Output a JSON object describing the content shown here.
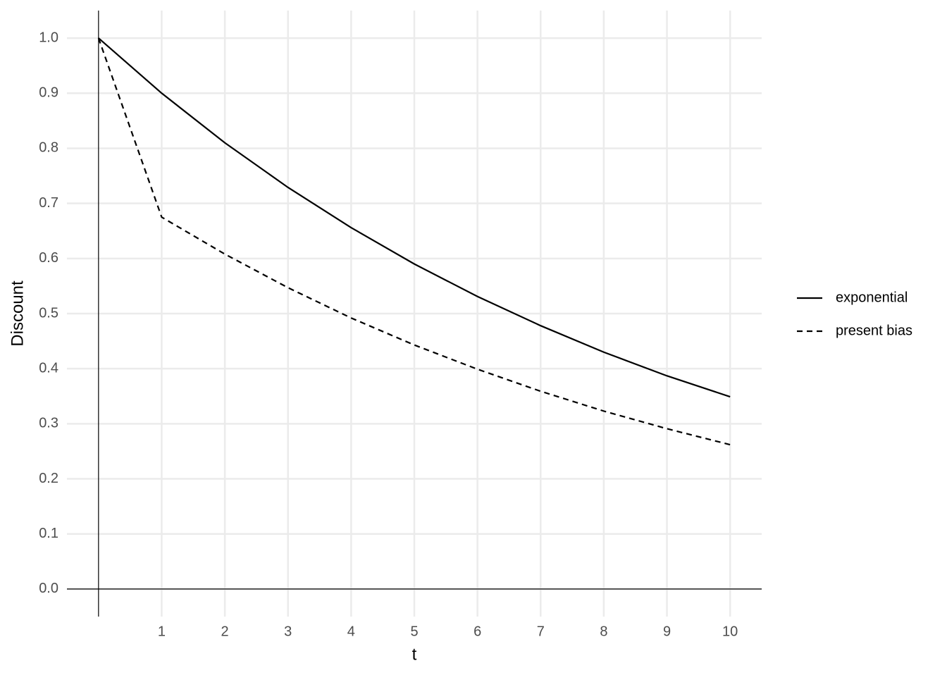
{
  "chart_data": {
    "type": "line",
    "x_label": "t",
    "y_label": "Discount",
    "x": [
      0,
      1,
      2,
      3,
      4,
      5,
      6,
      7,
      8,
      9,
      10
    ],
    "series": [
      {
        "name": "exponential",
        "color": "#000000",
        "dash": "solid",
        "values": [
          1,
          0.9,
          0.81,
          0.729,
          0.656,
          0.59,
          0.531,
          0.478,
          0.43,
          0.387,
          0.349
        ]
      },
      {
        "name": "present bias",
        "color": "#000000",
        "dash": "dashed",
        "values": [
          1,
          0.675,
          0.608,
          0.547,
          0.492,
          0.443,
          0.399,
          0.359,
          0.323,
          0.291,
          0.262
        ]
      }
    ],
    "xlim": [
      -0.5,
      10.5
    ],
    "xticks": [
      1,
      2,
      3,
      4,
      5,
      6,
      7,
      8,
      9,
      10
    ],
    "ylim": [
      -0.05,
      1.05
    ],
    "yticks": [
      {
        "value": 0,
        "label": "0.0"
      },
      0.1,
      0.2,
      0.3,
      0.4,
      0.5,
      0.6,
      0.7,
      0.8,
      0.9,
      {
        "value": 1,
        "label": "1.0"
      }
    ],
    "grid": true,
    "legend": "right"
  }
}
